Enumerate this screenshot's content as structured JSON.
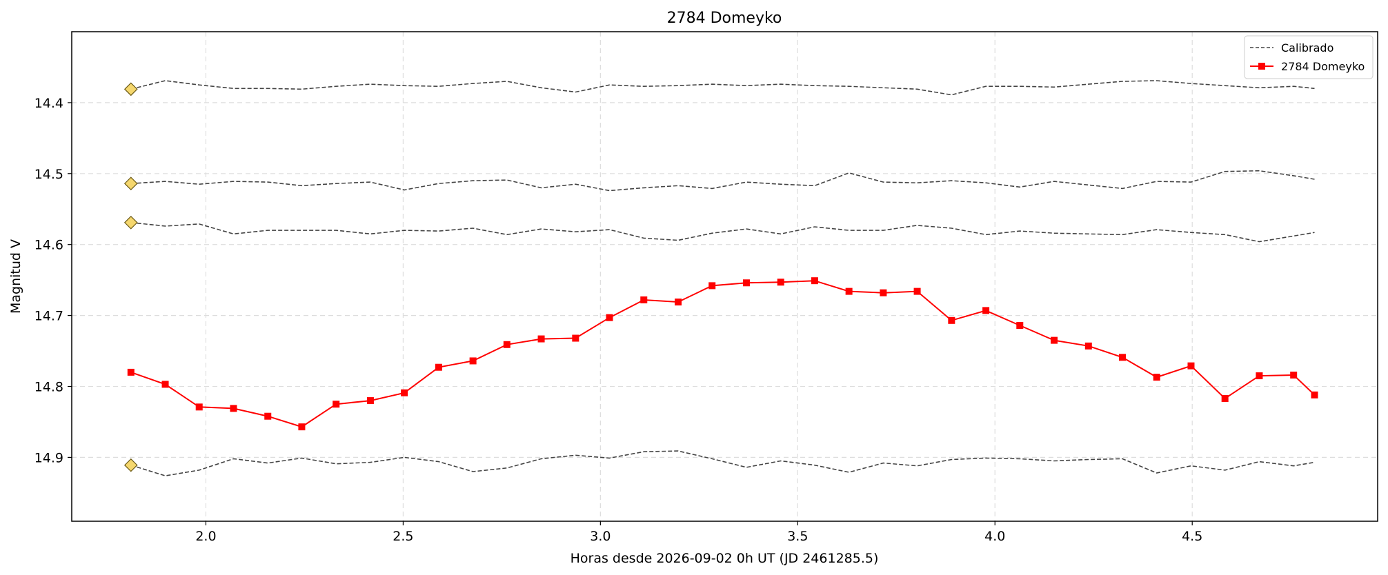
{
  "chart_data": {
    "type": "line",
    "title": "2784 Domeyko",
    "xlabel": "Horas desde 2026-09-02 0h UT (JD 2461285.5)",
    "ylabel": "Magnitud V",
    "xlim": [
      1.66,
      4.97
    ],
    "ylim": [
      14.99,
      14.3
    ],
    "y_inverted": true,
    "grid": true,
    "legend_position": "top-right",
    "x_ticks": [
      2.0,
      2.5,
      3.0,
      3.5,
      4.0,
      4.5
    ],
    "x_tick_labels": [
      "2.0",
      "2.5",
      "3.0",
      "3.5",
      "4.0",
      "4.5"
    ],
    "y_ticks": [
      14.4,
      14.5,
      14.6,
      14.7,
      14.8,
      14.9
    ],
    "y_tick_labels": [
      "14.4",
      "14.5",
      "14.6",
      "14.7",
      "14.8",
      "14.9"
    ],
    "x": [
      1.81,
      1.897,
      1.983,
      2.07,
      2.157,
      2.243,
      2.33,
      2.417,
      2.503,
      2.59,
      2.677,
      2.763,
      2.85,
      2.937,
      3.023,
      3.11,
      3.197,
      3.283,
      3.37,
      3.457,
      3.543,
      3.63,
      3.717,
      3.803,
      3.89,
      3.977,
      4.063,
      4.15,
      4.237,
      4.323,
      4.41,
      4.497,
      4.583,
      4.67,
      4.757,
      4.81
    ],
    "series": [
      {
        "name": "Calibrado",
        "style": "dashed",
        "color": "#444444",
        "values": [
          14.381,
          14.369,
          14.375,
          14.38,
          14.38,
          14.381,
          14.377,
          14.374,
          14.376,
          14.377,
          14.373,
          14.37,
          14.379,
          14.385,
          14.375,
          14.377,
          14.376,
          14.374,
          14.376,
          14.374,
          14.376,
          14.377,
          14.379,
          14.381,
          14.389,
          14.377,
          14.377,
          14.378,
          14.374,
          14.37,
          14.369,
          14.373,
          14.376,
          14.379,
          14.377,
          14.38
        ]
      },
      {
        "style": "dashed",
        "color": "#444444",
        "values": [
          14.514,
          14.511,
          14.515,
          14.511,
          14.512,
          14.517,
          14.514,
          14.512,
          14.523,
          14.514,
          14.51,
          14.509,
          14.52,
          14.515,
          14.524,
          14.52,
          14.517,
          14.521,
          14.512,
          14.515,
          14.517,
          14.499,
          14.512,
          14.513,
          14.51,
          14.513,
          14.519,
          14.511,
          14.516,
          14.521,
          14.511,
          14.512,
          14.497,
          14.496,
          14.503,
          14.508
        ]
      },
      {
        "style": "dashed",
        "color": "#444444",
        "values": [
          14.569,
          14.574,
          14.571,
          14.585,
          14.58,
          14.58,
          14.58,
          14.585,
          14.58,
          14.581,
          14.577,
          14.586,
          14.578,
          14.582,
          14.579,
          14.591,
          14.594,
          14.584,
          14.578,
          14.585,
          14.575,
          14.58,
          14.58,
          14.573,
          14.577,
          14.586,
          14.581,
          14.584,
          14.585,
          14.586,
          14.579,
          14.583,
          14.586,
          14.596,
          14.588,
          14.583
        ]
      },
      {
        "style": "dashed",
        "color": "#444444",
        "values": [
          14.911,
          14.926,
          14.918,
          14.902,
          14.908,
          14.901,
          14.909,
          14.907,
          14.9,
          14.906,
          14.92,
          14.915,
          14.902,
          14.897,
          14.901,
          14.892,
          14.891,
          14.902,
          14.914,
          14.905,
          14.911,
          14.921,
          14.908,
          14.912,
          14.903,
          14.901,
          14.902,
          14.905,
          14.903,
          14.902,
          14.922,
          14.912,
          14.918,
          14.906,
          14.912,
          14.907
        ]
      },
      {
        "name": "2784 Domeyko",
        "style": "solid-square-markers",
        "color": "#ff0000",
        "values": [
          14.78,
          14.797,
          14.829,
          14.831,
          14.842,
          14.857,
          14.825,
          14.82,
          14.809,
          14.773,
          14.764,
          14.741,
          14.733,
          14.732,
          14.703,
          14.678,
          14.681,
          14.658,
          14.654,
          14.653,
          14.651,
          14.666,
          14.668,
          14.666,
          14.707,
          14.693,
          14.714,
          14.735,
          14.743,
          14.759,
          14.787,
          14.771,
          14.817,
          14.785,
          14.784,
          14.812
        ]
      }
    ],
    "comparison_star_markers": {
      "x": 1.81,
      "values": [
        14.381,
        14.514,
        14.569,
        14.911
      ],
      "color": "#f5d76e"
    }
  }
}
